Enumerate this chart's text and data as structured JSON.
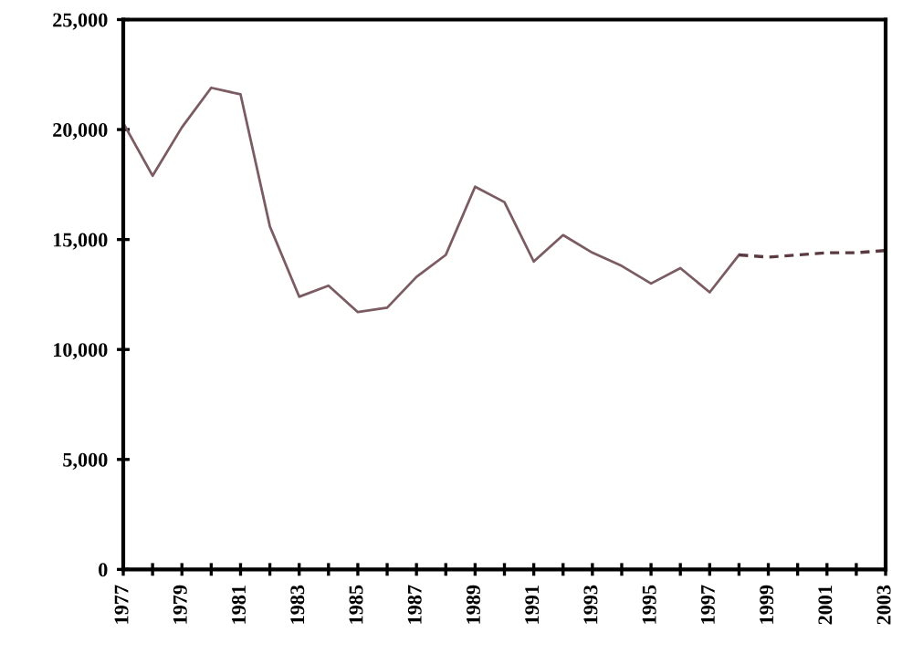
{
  "chart_data": {
    "type": "line",
    "x": [
      1977,
      1978,
      1979,
      1980,
      1981,
      1982,
      1983,
      1984,
      1985,
      1986,
      1987,
      1988,
      1989,
      1990,
      1991,
      1992,
      1993,
      1994,
      1995,
      1996,
      1997,
      1998
    ],
    "series": [
      {
        "color": "#7a5c62",
        "line_style": "solid",
        "values": [
          20300,
          17900,
          20100,
          21900,
          21600,
          15600,
          12400,
          12900,
          11700,
          11900,
          13300,
          14300,
          17400,
          16700,
          14000,
          15200,
          14400,
          13800,
          13000,
          13700,
          12600,
          14300
        ]
      },
      {
        "color": "#5a3a40",
        "line_style": "dashed",
        "x": [
          1998,
          1999,
          2000,
          2001,
          2002,
          2003
        ],
        "values": [
          14300,
          14200,
          14300,
          14400,
          14400,
          14500
        ]
      }
    ],
    "xlim": [
      1977,
      2003
    ],
    "xticks": [
      1977,
      {
        "value": 1978,
        "label": null
      },
      1979,
      {
        "value": 1980,
        "label": null
      },
      1981,
      {
        "value": 1982,
        "label": null
      },
      1983,
      {
        "value": 1984,
        "label": null
      },
      1985,
      {
        "value": 1986,
        "label": null
      },
      1987,
      {
        "value": 1988,
        "label": null
      },
      1989,
      {
        "value": 1990,
        "label": null
      },
      1991,
      {
        "value": 1992,
        "label": null
      },
      1993,
      {
        "value": 1994,
        "label": null
      },
      1995,
      {
        "value": 1996,
        "label": null
      },
      1997,
      {
        "value": 1998,
        "label": null
      },
      1999,
      {
        "value": 2000,
        "label": null
      },
      2001,
      {
        "value": 2002,
        "label": null
      },
      2003
    ],
    "ylim": [
      0,
      25000
    ],
    "yticks": [
      {
        "value": 0,
        "label": "0"
      },
      {
        "value": 5000,
        "label": "5,000"
      },
      {
        "value": 10000,
        "label": "10,000"
      },
      {
        "value": 15000,
        "label": "15,000"
      },
      {
        "value": 20000,
        "label": "20,000"
      },
      {
        "value": 25000,
        "label": "25,000"
      }
    ],
    "grid": false,
    "legend": false
  }
}
